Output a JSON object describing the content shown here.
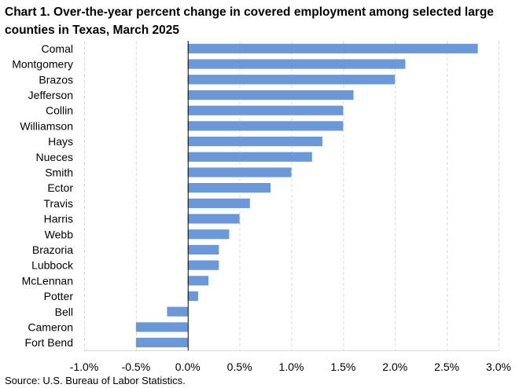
{
  "page": {
    "title": "Chart 1. Over-the-year percent change in covered employment among selected large counties in Texas, March 2025",
    "source": "Source: U.S. Bureau of Labor Statistics."
  },
  "chart_data": {
    "type": "bar",
    "orientation": "horizontal",
    "title": "Chart 1. Over-the-year percent change in covered employment among selected large counties in Texas, March 2025",
    "xlabel": "",
    "ylabel": "",
    "xlim": [
      -1.0,
      3.0
    ],
    "x_ticks": [
      -1.0,
      -0.5,
      0.0,
      0.5,
      1.0,
      1.5,
      2.0,
      2.5,
      3.0
    ],
    "x_tick_labels": [
      "-1.0%",
      "-0.5%",
      "0.0%",
      "0.5%",
      "1.0%",
      "1.5%",
      "2.0%",
      "2.5%",
      "3.0%"
    ],
    "grid": "vertical dashed",
    "bar_color": "#6a98d8",
    "categories": [
      "Comal",
      "Montgomery",
      "Brazos",
      "Jefferson",
      "Collin",
      "Williamson",
      "Hays",
      "Nueces",
      "Smith",
      "Ector",
      "Travis",
      "Harris",
      "Webb",
      "Brazoria",
      "Lubbock",
      "McLennan",
      "Potter",
      "Bell",
      "Cameron",
      "Fort Bend"
    ],
    "values": [
      2.8,
      2.1,
      2.0,
      1.6,
      1.5,
      1.5,
      1.3,
      1.2,
      1.0,
      0.8,
      0.6,
      0.5,
      0.4,
      0.3,
      0.3,
      0.2,
      0.1,
      -0.2,
      -0.5,
      -0.5
    ],
    "source": "Source: U.S. Bureau of Labor Statistics."
  }
}
